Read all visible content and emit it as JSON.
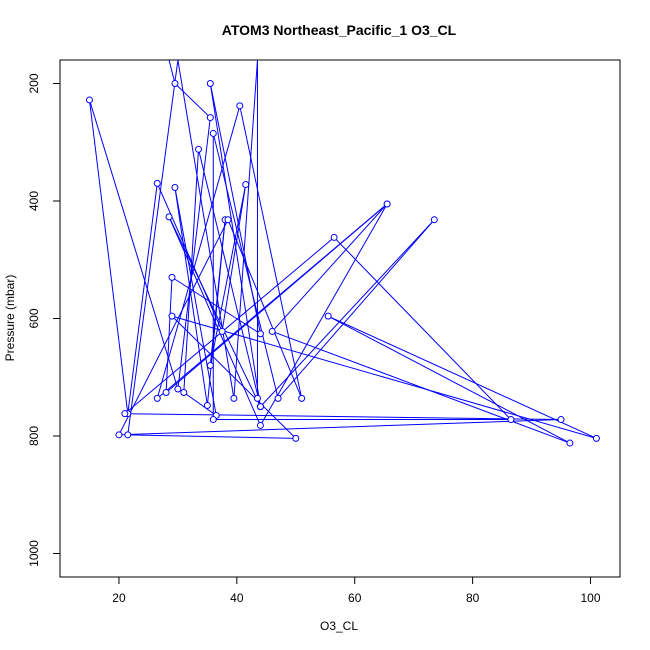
{
  "chart_data": {
    "type": "line",
    "title": "ATOM3 Northeast_Pacific_1 O3_CL",
    "xlabel": "O3_CL",
    "ylabel": "Pressure (mbar)",
    "xlim": [
      10,
      105
    ],
    "ylim": [
      1040,
      160
    ],
    "y_reversed": true,
    "x_ticks": [
      20,
      40,
      60,
      80,
      100
    ],
    "x_tick_labels": [
      "20",
      "40",
      "60",
      "80",
      "100"
    ],
    "y_ticks": [
      200,
      400,
      600,
      800,
      1000
    ],
    "y_tick_labels": [
      "200",
      "400",
      "600",
      "800",
      "1000"
    ],
    "grid": false,
    "color": "#0000ff",
    "points": [
      [
        28.5,
        160
      ],
      [
        29.5,
        200
      ],
      [
        35.5,
        258
      ],
      [
        30,
        720
      ],
      [
        15,
        228
      ],
      [
        21.5,
        762
      ],
      [
        26.5,
        370
      ],
      [
        37.5,
        622
      ],
      [
        41.5,
        372
      ],
      [
        35.5,
        680
      ],
      [
        38,
        432
      ],
      [
        35,
        748
      ],
      [
        29.5,
        377
      ],
      [
        36.5,
        765
      ],
      [
        31,
        726
      ],
      [
        33.5,
        312
      ],
      [
        44,
        750
      ],
      [
        28.5,
        427
      ],
      [
        44,
        782
      ],
      [
        65.5,
        405
      ],
      [
        28,
        726
      ],
      [
        29,
        530
      ],
      [
        44,
        626
      ],
      [
        35.5,
        200
      ],
      [
        44,
        750
      ],
      [
        73.5,
        432
      ],
      [
        47,
        736
      ],
      [
        36,
        285
      ],
      [
        36,
        772
      ],
      [
        86.5,
        772
      ],
      [
        56.5,
        462
      ],
      [
        21,
        762
      ],
      [
        95,
        772
      ],
      [
        20,
        798
      ],
      [
        38.5,
        432
      ],
      [
        51,
        736
      ],
      [
        40.5,
        238
      ],
      [
        26.5,
        736
      ],
      [
        65.5,
        405
      ],
      [
        46,
        622
      ],
      [
        96.5,
        812
      ],
      [
        55.5,
        596
      ],
      [
        101,
        804
      ],
      [
        29,
        596
      ],
      [
        50,
        804
      ],
      [
        21.5,
        798
      ],
      [
        30,
        160
      ],
      [
        39.5,
        736
      ],
      [
        43.5,
        160
      ],
      [
        43.5,
        736
      ]
    ]
  }
}
